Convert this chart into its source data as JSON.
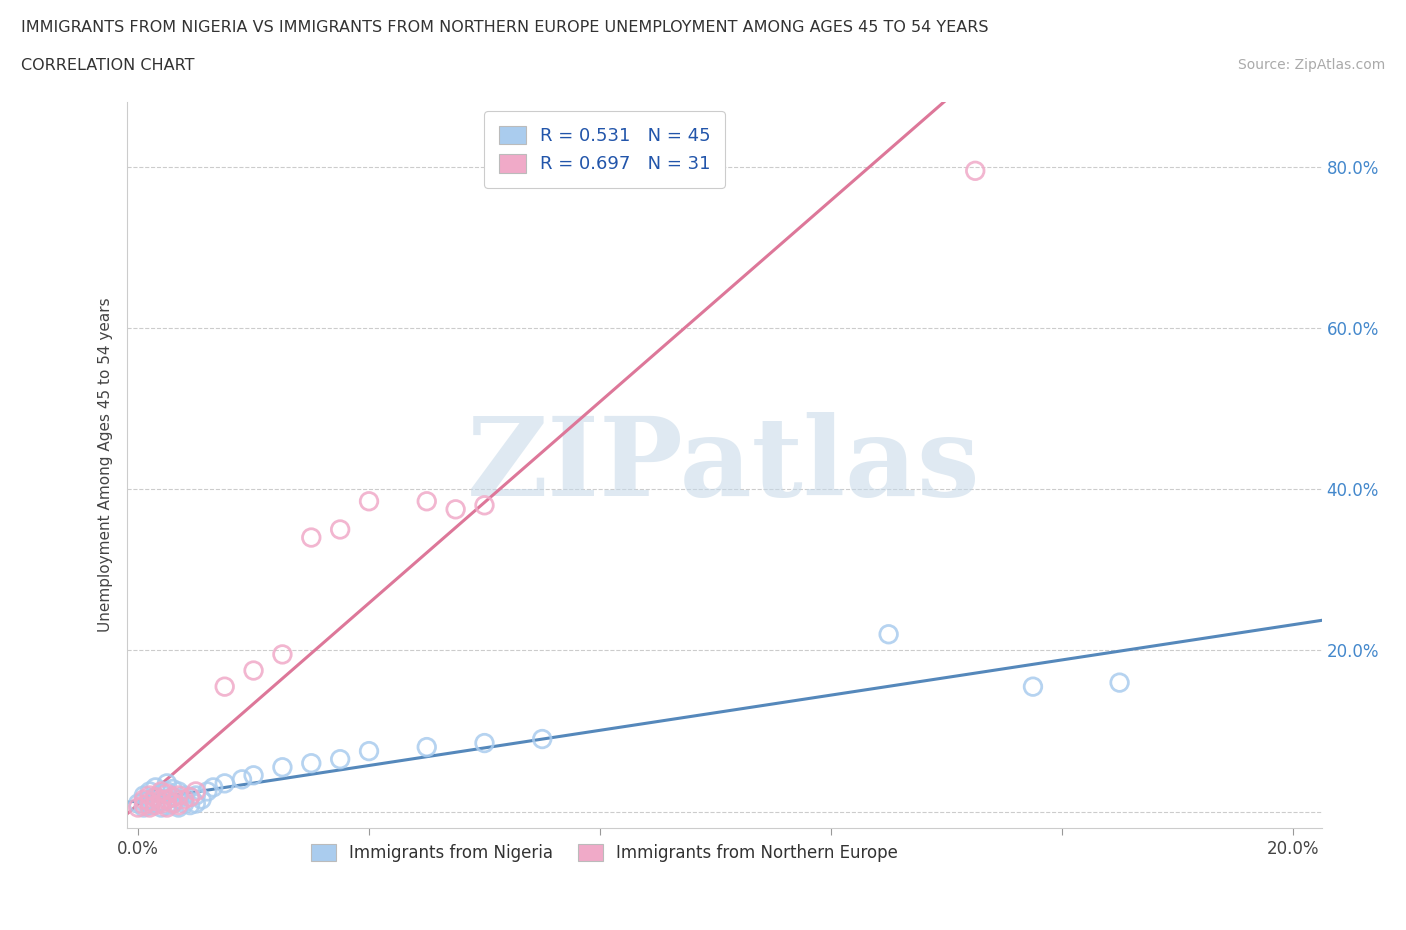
{
  "title_line1": "IMMIGRANTS FROM NIGERIA VS IMMIGRANTS FROM NORTHERN EUROPE UNEMPLOYMENT AMONG AGES 45 TO 54 YEARS",
  "title_line2": "CORRELATION CHART",
  "source_text": "Source: ZipAtlas.com",
  "ylabel": "Unemployment Among Ages 45 to 54 years",
  "xlim": [
    -0.002,
    0.205
  ],
  "ylim": [
    -0.02,
    0.88
  ],
  "nigeria_R": 0.531,
  "nigeria_N": 45,
  "northern_europe_R": 0.697,
  "northern_europe_N": 31,
  "nigeria_color": "#aaccee",
  "northern_europe_color": "#f0aac8",
  "nigeria_line_color": "#5588bb",
  "northern_europe_line_color": "#dd7799",
  "watermark_text": "ZIPatlas",
  "watermark_color": "#c5d8e8",
  "nigeria_x": [
    0.0,
    0.001,
    0.001,
    0.001,
    0.002,
    0.002,
    0.002,
    0.003,
    0.003,
    0.003,
    0.004,
    0.004,
    0.004,
    0.005,
    0.005,
    0.005,
    0.005,
    0.006,
    0.006,
    0.006,
    0.007,
    0.007,
    0.007,
    0.008,
    0.008,
    0.009,
    0.009,
    0.01,
    0.01,
    0.011,
    0.012,
    0.013,
    0.015,
    0.018,
    0.02,
    0.025,
    0.03,
    0.035,
    0.04,
    0.05,
    0.06,
    0.07,
    0.13,
    0.155,
    0.17
  ],
  "nigeria_y": [
    0.01,
    0.005,
    0.012,
    0.02,
    0.008,
    0.015,
    0.025,
    0.01,
    0.018,
    0.03,
    0.005,
    0.012,
    0.022,
    0.008,
    0.015,
    0.025,
    0.035,
    0.01,
    0.018,
    0.028,
    0.005,
    0.015,
    0.025,
    0.01,
    0.02,
    0.008,
    0.018,
    0.01,
    0.02,
    0.015,
    0.025,
    0.03,
    0.035,
    0.04,
    0.045,
    0.055,
    0.06,
    0.065,
    0.075,
    0.08,
    0.085,
    0.09,
    0.22,
    0.155,
    0.16
  ],
  "northern_europe_x": [
    0.0,
    0.001,
    0.001,
    0.002,
    0.002,
    0.002,
    0.003,
    0.003,
    0.004,
    0.004,
    0.004,
    0.005,
    0.005,
    0.005,
    0.006,
    0.006,
    0.007,
    0.007,
    0.008,
    0.009,
    0.01,
    0.015,
    0.02,
    0.025,
    0.03,
    0.035,
    0.04,
    0.055,
    0.06,
    0.145,
    0.05
  ],
  "northern_europe_y": [
    0.005,
    0.008,
    0.015,
    0.005,
    0.012,
    0.02,
    0.008,
    0.018,
    0.01,
    0.015,
    0.025,
    0.005,
    0.015,
    0.022,
    0.01,
    0.018,
    0.008,
    0.02,
    0.015,
    0.018,
    0.025,
    0.155,
    0.175,
    0.195,
    0.34,
    0.35,
    0.385,
    0.375,
    0.38,
    0.795,
    0.385
  ]
}
